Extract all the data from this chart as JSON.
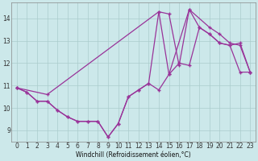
{
  "xlabel": "Windchill (Refroidissement éolien,°C)",
  "bg_color": "#cce8ea",
  "line_color": "#993399",
  "grid_color": "#aacccc",
  "xlim_min": -0.5,
  "xlim_max": 23.5,
  "ylim_min": 8.5,
  "ylim_max": 14.7,
  "yticks": [
    9,
    10,
    11,
    12,
    13,
    14
  ],
  "xticks": [
    0,
    1,
    2,
    3,
    4,
    5,
    6,
    7,
    8,
    9,
    10,
    11,
    12,
    13,
    14,
    15,
    16,
    17,
    18,
    19,
    20,
    21,
    22,
    23
  ],
  "line1_x": [
    0,
    1,
    2,
    3,
    4,
    5,
    6,
    7,
    8,
    9,
    10,
    11,
    12,
    13,
    14,
    15,
    16,
    17,
    18,
    19,
    20,
    21,
    22,
    23
  ],
  "line1_y": [
    10.9,
    10.7,
    10.3,
    10.3,
    9.9,
    9.6,
    9.4,
    9.4,
    9.4,
    8.7,
    9.3,
    10.5,
    10.8,
    11.1,
    10.8,
    11.5,
    12.0,
    11.9,
    13.6,
    13.3,
    12.9,
    12.8,
    11.6,
    11.6
  ],
  "line2_x": [
    0,
    1,
    2,
    3,
    4,
    5,
    6,
    7,
    8,
    9,
    10,
    11,
    12,
    13,
    14,
    15,
    16,
    17,
    18,
    19,
    20,
    21,
    22,
    23
  ],
  "line2_y": [
    10.9,
    10.7,
    10.3,
    10.3,
    9.9,
    9.6,
    9.4,
    9.4,
    9.4,
    8.7,
    9.3,
    10.5,
    10.8,
    11.1,
    14.3,
    14.2,
    11.9,
    14.4,
    13.6,
    13.3,
    12.9,
    12.8,
    12.9,
    11.6
  ],
  "line3_x": [
    0,
    3,
    14,
    15,
    17,
    19,
    20,
    21,
    22,
    23
  ],
  "line3_y": [
    10.9,
    10.6,
    14.3,
    11.5,
    14.4,
    13.6,
    13.3,
    12.9,
    12.8,
    11.6
  ]
}
